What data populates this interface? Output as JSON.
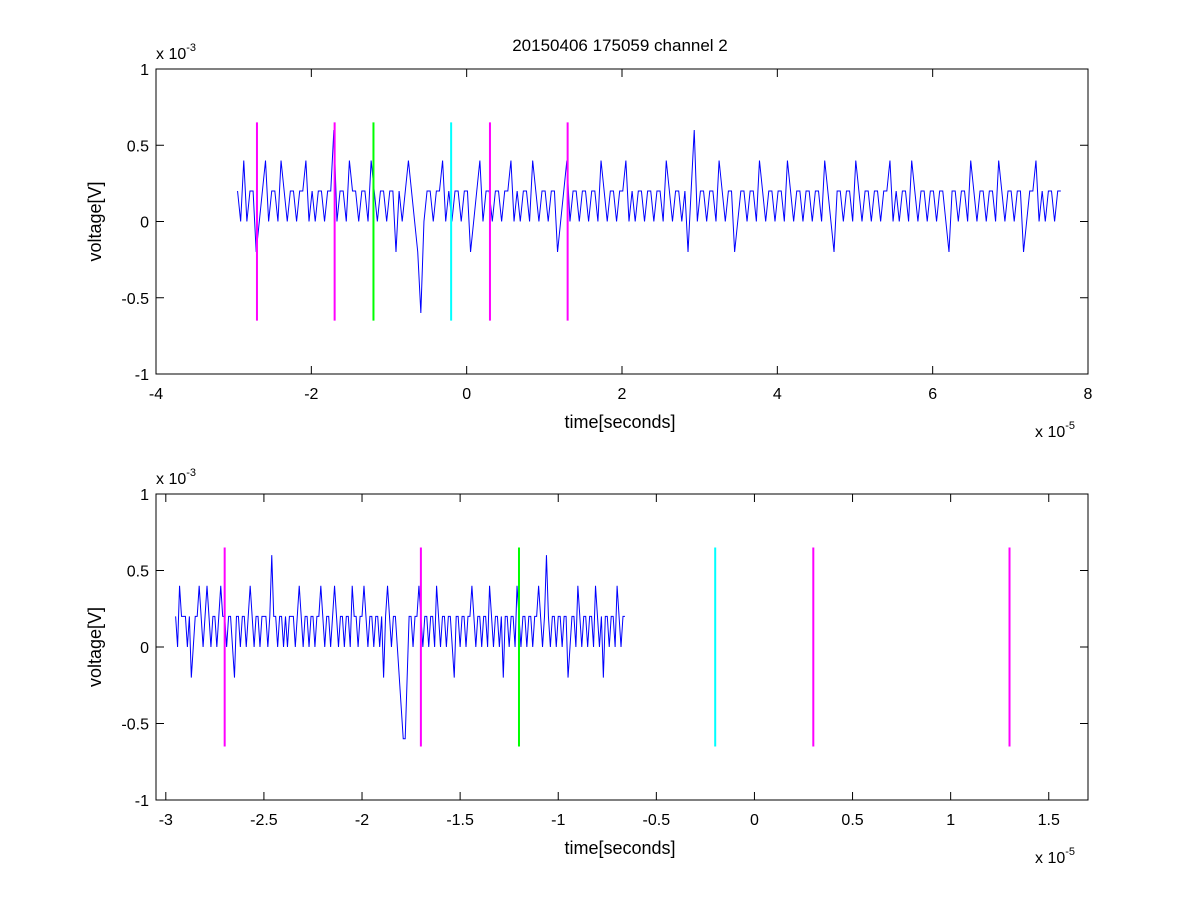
{
  "chart_data": [
    {
      "type": "line",
      "title": "20150406 175059 channel 2",
      "xlabel": "time[seconds]",
      "ylabel": "voltage[V]",
      "x_multiplier": "x 10",
      "x_multiplier_exp": "-5",
      "y_multiplier": "x 10",
      "y_multiplier_exp": "-3",
      "xlim": [
        -4,
        8
      ],
      "ylim": [
        -1,
        1
      ],
      "xticks": [
        -4,
        -2,
        0,
        2,
        4,
        6,
        8
      ],
      "xtick_labels": [
        "-4",
        "-2",
        "0",
        "2",
        "4",
        "6",
        "8"
      ],
      "yticks": [
        -1,
        -0.5,
        0,
        0.5,
        1
      ],
      "ytick_labels": [
        "-1",
        "-0.5",
        "0",
        "0.5",
        "1"
      ],
      "grid": false,
      "series": [
        {
          "color": "#0000ff",
          "x_start": -2.95,
          "x_step": 0.04,
          "values": [
            0.2,
            0.0,
            0.4,
            0.0,
            0.2,
            0.2,
            -0.2,
            0.0,
            0.2,
            0.4,
            0.0,
            0.2,
            0.2,
            0.0,
            0.4,
            0.2,
            0.0,
            0.2,
            0.2,
            0.0,
            0.2,
            0.2,
            0.4,
            0.0,
            0.2,
            0.0,
            0.2,
            0.2,
            0.0,
            0.2,
            0.2,
            0.6,
            0.0,
            0.2,
            0.2,
            0.0,
            0.4,
            0.2,
            0.2,
            0.0,
            0.2,
            0.2,
            0.0,
            0.4,
            0.2,
            0.0,
            0.2,
            0.2,
            0.0,
            0.2,
            0.2,
            -0.2,
            0.2,
            0.0,
            0.2,
            0.4,
            0.2,
            0.0,
            -0.2,
            -0.6,
            0.0,
            0.2,
            0.2,
            0.0,
            0.2,
            0.2,
            0.4,
            0.0,
            0.2,
            0.0,
            0.2,
            0.2,
            0.0,
            0.2,
            0.2,
            -0.2,
            0.0,
            0.2,
            0.4,
            0.0,
            0.2,
            0.2,
            0.0,
            0.2,
            0.2,
            0.0,
            0.2,
            0.2,
            0.4,
            0.0,
            0.2,
            0.0,
            0.2,
            0.2,
            0.0,
            0.4,
            0.2,
            0.0,
            0.2,
            0.2,
            0.0,
            0.2,
            0.2,
            -0.2,
            0.0,
            0.2,
            0.4,
            0.0,
            0.2,
            0.2,
            0.0,
            0.2,
            0.2,
            0.0,
            0.2,
            0.2,
            0.0,
            0.4,
            0.2,
            0.0,
            0.2,
            0.2,
            0.0,
            0.2,
            0.2,
            0.4,
            0.0,
            0.2,
            0.0,
            0.2,
            0.2,
            0.0,
            0.2,
            0.2,
            0.0,
            0.2,
            0.2,
            0.0,
            0.4,
            0.2,
            0.0,
            0.2,
            0.2,
            0.0,
            0.2,
            -0.2,
            0.2,
            0.6,
            0.0,
            0.2,
            0.2,
            0.0,
            0.2,
            0.2,
            0.0,
            0.4,
            0.2,
            0.0,
            0.2,
            0.2,
            -0.2,
            0.0,
            0.2,
            0.2,
            0.0,
            0.2,
            0.2,
            0.0,
            0.4,
            0.2,
            0.0,
            0.2,
            0.2,
            0.0,
            0.2,
            0.2,
            0.0,
            0.4,
            0.2,
            0.0,
            0.2,
            0.2,
            0.0,
            0.2,
            0.2,
            0.0,
            0.2,
            0.2,
            0.0,
            0.4,
            0.2,
            0.0,
            -0.2,
            0.2,
            0.2,
            0.0,
            0.2,
            0.2,
            0.0,
            0.4,
            0.2,
            0.0,
            0.2,
            0.2,
            0.0,
            0.2,
            0.2,
            0.0,
            0.2,
            0.2,
            0.4,
            0.0,
            0.2,
            0.0,
            0.2,
            0.2,
            0.0,
            0.4,
            0.2,
            0.0,
            0.2,
            0.2,
            0.0,
            0.2,
            0.2,
            0.0,
            0.2,
            0.2,
            0.0,
            -0.2,
            0.2,
            0.2,
            0.0,
            0.2,
            0.2,
            0.0,
            0.4,
            0.2,
            0.0,
            0.2,
            0.2,
            0.0,
            0.2,
            0.2,
            0.0,
            0.4,
            0.2,
            0.0,
            0.2,
            0.2,
            0.0,
            0.2,
            0.2,
            -0.2,
            0.0,
            0.2,
            0.2,
            0.4,
            0.0,
            0.2,
            0.0,
            0.2,
            0.2,
            0.0,
            0.2,
            0.2
          ]
        }
      ],
      "event_lines": [
        {
          "x": -2.7,
          "color": "#ff00ff",
          "y_top": 0.65,
          "y_bottom": -0.65
        },
        {
          "x": -1.7,
          "color": "#ff00ff",
          "y_top": 0.65,
          "y_bottom": -0.65
        },
        {
          "x": -1.2,
          "color": "#00ff00",
          "y_top": 0.65,
          "y_bottom": -0.65
        },
        {
          "x": -0.2,
          "color": "#00ffff",
          "y_top": 0.65,
          "y_bottom": -0.65
        },
        {
          "x": 0.3,
          "color": "#ff00ff",
          "y_top": 0.65,
          "y_bottom": -0.65
        },
        {
          "x": 1.3,
          "color": "#ff00ff",
          "y_top": 0.65,
          "y_bottom": -0.65
        }
      ]
    },
    {
      "type": "line",
      "title": "",
      "xlabel": "time[seconds]",
      "ylabel": "voltage[V]",
      "x_multiplier": "x 10",
      "x_multiplier_exp": "-5",
      "y_multiplier": "x 10",
      "y_multiplier_exp": "-3",
      "xlim": [
        -3.05,
        1.7
      ],
      "ylim": [
        -1,
        1
      ],
      "xticks": [
        -3,
        -2.5,
        -2,
        -1.5,
        -1,
        -0.5,
        0,
        0.5,
        1,
        1.5
      ],
      "xtick_labels": [
        "-3",
        "-2.5",
        "-2",
        "-1.5",
        "-1",
        "-0.5",
        "0",
        "0.5",
        "1",
        "1.5"
      ],
      "yticks": [
        -1,
        -0.5,
        0,
        0.5,
        1
      ],
      "ytick_labels": [
        "-1",
        "-0.5",
        "0",
        "0.5",
        "1"
      ],
      "grid": false,
      "series": [
        {
          "color": "#0000ff",
          "x_start": -2.95,
          "x_step": 0.01,
          "values": [
            0.2,
            0.0,
            0.4,
            0.2,
            0.2,
            0.2,
            0.0,
            0.2,
            -0.2,
            0.0,
            0.2,
            0.2,
            0.4,
            0.2,
            0.0,
            0.2,
            0.4,
            0.2,
            0.0,
            0.2,
            0.2,
            0.0,
            0.2,
            0.4,
            0.2,
            0.2,
            0.0,
            0.2,
            0.2,
            0.0,
            -0.2,
            0.2,
            0.2,
            0.0,
            0.2,
            0.2,
            0.0,
            0.2,
            0.4,
            0.2,
            0.0,
            0.2,
            0.2,
            0.0,
            0.2,
            0.2,
            0.2,
            0.0,
            0.2,
            0.6,
            0.2,
            0.2,
            0.0,
            0.2,
            0.2,
            0.0,
            0.2,
            0.0,
            0.2,
            0.2,
            0.2,
            0.0,
            0.2,
            0.4,
            0.2,
            0.0,
            0.2,
            0.2,
            0.0,
            0.2,
            0.2,
            0.0,
            0.2,
            0.2,
            0.4,
            0.2,
            0.0,
            0.2,
            0.2,
            0.0,
            0.2,
            0.4,
            0.2,
            0.0,
            0.2,
            0.2,
            0.0,
            0.2,
            0.2,
            0.0,
            0.4,
            0.2,
            0.2,
            0.0,
            0.2,
            0.2,
            0.4,
            0.2,
            0.0,
            0.2,
            0.2,
            0.0,
            0.2,
            0.2,
            0.0,
            0.2,
            -0.2,
            0.2,
            0.4,
            0.2,
            0.0,
            0.2,
            0.2,
            0.0,
            -0.2,
            -0.4,
            -0.6,
            -0.6,
            -0.2,
            0.2,
            0.2,
            0.0,
            0.2,
            0.2,
            0.4,
            0.2,
            0.0,
            0.2,
            0.2,
            0.0,
            0.2,
            0.2,
            0.0,
            0.4,
            0.2,
            0.0,
            0.2,
            0.2,
            0.0,
            0.2,
            0.2,
            0.0,
            -0.2,
            0.2,
            0.2,
            0.0,
            0.2,
            0.2,
            0.0,
            0.2,
            0.2,
            0.4,
            0.2,
            0.0,
            0.2,
            0.2,
            0.0,
            0.2,
            0.2,
            0.0,
            0.4,
            0.2,
            0.0,
            0.2,
            0.2,
            0.0,
            0.2,
            -0.2,
            0.2,
            0.2,
            0.0,
            0.2,
            0.2,
            0.0,
            0.4,
            0.2,
            0.0,
            0.2,
            0.2,
            0.0,
            0.2,
            0.2,
            0.0,
            0.2,
            0.2,
            0.4,
            0.2,
            0.0,
            0.2,
            0.6,
            0.2,
            0.0,
            0.2,
            0.2,
            0.0,
            0.2,
            0.2,
            0.0,
            0.2,
            0.2,
            -0.2,
            0.0,
            0.2,
            0.2,
            0.0,
            0.4,
            0.2,
            0.0,
            0.2,
            0.2,
            0.0,
            0.2,
            0.2,
            0.0,
            0.4,
            0.2,
            0.0,
            0.2,
            -0.2,
            0.2,
            0.2,
            0.0,
            0.2,
            0.2,
            0.0,
            0.4,
            0.2,
            0.0,
            0.2,
            0.2
          ]
        }
      ],
      "event_lines": [
        {
          "x": -2.7,
          "color": "#ff00ff",
          "y_top": 0.65,
          "y_bottom": -0.65
        },
        {
          "x": -1.7,
          "color": "#ff00ff",
          "y_top": 0.65,
          "y_bottom": -0.65
        },
        {
          "x": -1.2,
          "color": "#00ff00",
          "y_top": 0.65,
          "y_bottom": -0.65
        },
        {
          "x": -0.2,
          "color": "#00ffff",
          "y_top": 0.65,
          "y_bottom": -0.65
        },
        {
          "x": 0.3,
          "color": "#ff00ff",
          "y_top": 0.65,
          "y_bottom": -0.65
        },
        {
          "x": 1.3,
          "color": "#ff00ff",
          "y_top": 0.65,
          "y_bottom": -0.65
        }
      ]
    }
  ]
}
